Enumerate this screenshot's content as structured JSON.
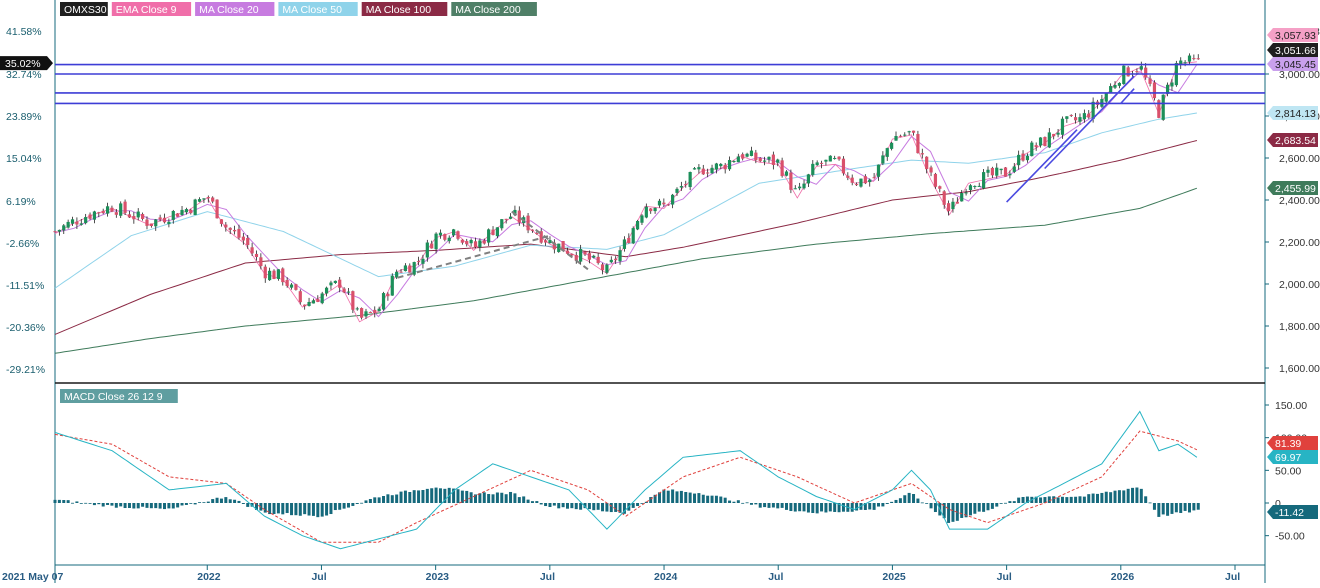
{
  "legend": [
    {
      "label": "OMXS30",
      "bg": "#1f1f1f",
      "fg": "#ffffff"
    },
    {
      "label": "EMA Close 9",
      "bg": "#f06ea9",
      "fg": "#ffffff"
    },
    {
      "label": "MA Close 20",
      "bg": "#c77be0",
      "fg": "#ffffff"
    },
    {
      "label": "MA Close 50",
      "bg": "#8fd3ea",
      "fg": "#ffffff"
    },
    {
      "label": "MA Close 100",
      "bg": "#8b2a45",
      "fg": "#ffffff"
    },
    {
      "label": "MA Close 200",
      "bg": "#4f7f67",
      "fg": "#ffffff"
    }
  ],
  "macd_label": "MACD Close 26 12 9",
  "colors": {
    "up": "#1c8f5a",
    "down": "#d9506b",
    "ema9": "#f06ea9",
    "ma20": "#c77be0",
    "ma50": "#8fd3ea",
    "ma100": "#8b2a45",
    "ma200": "#3f7b5b",
    "hline": "#3d3dd6",
    "trend": "#4a4ae0",
    "dashed": "#808080",
    "macd": "#27b4c4",
    "signal": "#e0413d",
    "hist": "#15697c",
    "axis": "#15697c",
    "percent_text": "#1a5e6e"
  },
  "left_axis": {
    "ticks": [
      "41.58%",
      "32.74%",
      "23.89%",
      "15.04%",
      "6.19%",
      "-2.66%",
      "-11.51%",
      "-20.36%",
      "-29.21%"
    ],
    "current": "35.02%"
  },
  "right_axis": {
    "ticks": [
      "3,000.00",
      "2,800.00",
      "2,600.00",
      "2,400.00",
      "2,200.00",
      "2,000.00",
      "1,800.00",
      "1,600.00"
    ],
    "obscured_top_label": "3,059.93"
  },
  "price_badges": [
    {
      "text": "3,057.93",
      "bg": "#f5a0c6",
      "fg": "#1f1f1f",
      "value": 3057.93
    },
    {
      "text": "3,051.66",
      "bg": "#1f1f1f",
      "fg": "#ffffff",
      "value": 3051.66
    },
    {
      "text": "3,045.45",
      "bg": "#c9a0ec",
      "fg": "#1f1f1f",
      "value": 3045.45
    },
    {
      "text": "2,814.13",
      "bg": "#bfe6f3",
      "fg": "#1f1f1f",
      "value": 2814.13
    },
    {
      "text": "2,683.54",
      "bg": "#8b2a45",
      "fg": "#ffffff",
      "value": 2683.54
    },
    {
      "text": "2,455.99",
      "bg": "#3f7b5b",
      "fg": "#ffffff",
      "value": 2455.99
    }
  ],
  "macd_axis": {
    "ticks": [
      "150.00",
      "100.00",
      "50.00",
      "0",
      "-50.00"
    ],
    "badges": [
      {
        "text": "81.39",
        "bg": "#e0413d",
        "fg": "#ffffff",
        "value": 81.39
      },
      {
        "text": "69.97",
        "bg": "#27b4c4",
        "fg": "#ffffff",
        "value": 69.97
      },
      {
        "text": "-11.42",
        "bg": "#15697c",
        "fg": "#ffffff",
        "value": -11.42
      }
    ]
  },
  "x_axis": {
    "labels": [
      "2021 May 07",
      "2022",
      "Jul",
      "2023",
      "Jul",
      "2024",
      "Jul",
      "2025",
      "Jul",
      "2026",
      "Jul"
    ]
  },
  "chart_data": [
    {
      "type": "candlestick",
      "title": "OMXS30",
      "y_range": [
        1560,
        3100
      ],
      "horizontal_lines": [
        3045,
        3000,
        2910,
        2860
      ],
      "x_ticks": [
        "2021 May 07",
        "2022",
        "Jul",
        "2023",
        "Jul",
        "2024",
        "Jul",
        "2025",
        "Jul",
        "2026",
        "Jul"
      ],
      "trend_lines": [
        {
          "from": [
            "2025-07",
            "2390"
          ],
          "to": [
            "2025-10",
            "2735"
          ]
        },
        {
          "from": [
            "2025-09",
            "2550"
          ],
          "to": [
            "2026-01",
            "2990"
          ]
        },
        {
          "from": [
            "2026-01",
            "2860"
          ],
          "to": [
            "2026-01",
            "2930"
          ]
        }
      ],
      "dashed_lines": [
        {
          "from": [
            "2022-11",
            "2030"
          ],
          "to": [
            "2023-07",
            "2230"
          ]
        },
        {
          "from": [
            "2023-05",
            "2345"
          ],
          "to": [
            "2023-09",
            "2070"
          ]
        }
      ],
      "series": [
        {
          "name": "OMXS30",
          "key": "close",
          "anchors": [
            [
              "2021-05",
              2250
            ],
            [
              "2021-06",
              2300
            ],
            [
              "2021-07",
              2340
            ],
            [
              "2021-08",
              2370
            ],
            [
              "2021-09",
              2330
            ],
            [
              "2021-10",
              2290
            ],
            [
              "2021-11",
              2330
            ],
            [
              "2021-12",
              2360
            ],
            [
              "2022-01",
              2420
            ],
            [
              "2022-02",
              2270
            ],
            [
              "2022-03",
              2200
            ],
            [
              "2022-04",
              2060
            ],
            [
              "2022-05",
              2030
            ],
            [
              "2022-06",
              1900
            ],
            [
              "2022-07",
              1950
            ],
            [
              "2022-08",
              2010
            ],
            [
              "2022-09",
              1830
            ],
            [
              "2022-10",
              1880
            ],
            [
              "2022-11",
              2070
            ],
            [
              "2022-12",
              2100
            ],
            [
              "2023-01",
              2230
            ],
            [
              "2023-02",
              2260
            ],
            [
              "2023-03",
              2170
            ],
            [
              "2023-04",
              2260
            ],
            [
              "2023-05",
              2330
            ],
            [
              "2023-06",
              2270
            ],
            [
              "2023-07",
              2200
            ],
            [
              "2023-08",
              2160
            ],
            [
              "2023-09",
              2120
            ],
            [
              "2023-10",
              2060
            ],
            [
              "2023-11",
              2200
            ],
            [
              "2023-12",
              2380
            ],
            [
              "2024-01",
              2370
            ],
            [
              "2024-02",
              2470
            ],
            [
              "2024-03",
              2550
            ],
            [
              "2024-04",
              2560
            ],
            [
              "2024-05",
              2620
            ],
            [
              "2024-06",
              2590
            ],
            [
              "2024-07",
              2580
            ],
            [
              "2024-08",
              2420
            ],
            [
              "2024-09",
              2570
            ],
            [
              "2024-10",
              2580
            ],
            [
              "2024-11",
              2490
            ],
            [
              "2024-12",
              2500
            ],
            [
              "2025-01",
              2700
            ],
            [
              "2025-02",
              2720
            ],
            [
              "2025-03",
              2510
            ],
            [
              "2025-04",
              2340
            ],
            [
              "2025-05",
              2490
            ],
            [
              "2025-06",
              2510
            ],
            [
              "2025-07",
              2530
            ],
            [
              "2025-08",
              2630
            ],
            [
              "2025-09",
              2680
            ],
            [
              "2025-10",
              2760
            ],
            [
              "2025-11",
              2790
            ],
            [
              "2025-12",
              2880
            ],
            [
              "2026-01",
              3000
            ],
            [
              "2026-02",
              3040
            ],
            [
              "2026-03",
              2820
            ],
            [
              "2026-04",
              3060
            ],
            [
              "2026-05",
              3052
            ]
          ]
        },
        {
          "name": "EMA Close 9",
          "key": "ema9",
          "anchors": [
            [
              "2026-05",
              3057.93
            ]
          ]
        },
        {
          "name": "MA Close 20",
          "key": "ma20",
          "anchors": [
            [
              "2026-05",
              3045.45
            ]
          ]
        },
        {
          "name": "MA Close 50",
          "key": "ma50",
          "anchors": [
            [
              "2021-05",
              1980
            ],
            [
              "2021-09",
              2230
            ],
            [
              "2022-01",
              2345
            ],
            [
              "2022-05",
              2250
            ],
            [
              "2022-10",
              2035
            ],
            [
              "2023-02",
              2085
            ],
            [
              "2023-06",
              2185
            ],
            [
              "2023-10",
              2165
            ],
            [
              "2024-01",
              2235
            ],
            [
              "2024-06",
              2480
            ],
            [
              "2024-11",
              2550
            ],
            [
              "2025-02",
              2590
            ],
            [
              "2025-05",
              2575
            ],
            [
              "2025-09",
              2625
            ],
            [
              "2025-12",
              2720
            ],
            [
              "2026-03",
              2785
            ],
            [
              "2026-05",
              2814.13
            ]
          ]
        },
        {
          "name": "MA Close 100",
          "key": "ma100",
          "anchors": [
            [
              "2021-05",
              1760
            ],
            [
              "2021-10",
              1950
            ],
            [
              "2022-03",
              2100
            ],
            [
              "2022-08",
              2140
            ],
            [
              "2023-01",
              2160
            ],
            [
              "2023-06",
              2190
            ],
            [
              "2023-11",
              2130
            ],
            [
              "2024-02",
              2175
            ],
            [
              "2024-08",
              2290
            ],
            [
              "2025-01",
              2400
            ],
            [
              "2025-05",
              2440
            ],
            [
              "2025-09",
              2510
            ],
            [
              "2026-01",
              2590
            ],
            [
              "2026-05",
              2683.54
            ]
          ]
        },
        {
          "name": "MA Close 200",
          "key": "ma200",
          "anchors": [
            [
              "2021-05",
              1670
            ],
            [
              "2021-10",
              1740
            ],
            [
              "2022-03",
              1800
            ],
            [
              "2022-09",
              1850
            ],
            [
              "2023-03",
              1920
            ],
            [
              "2023-09",
              2020
            ],
            [
              "2024-03",
              2120
            ],
            [
              "2024-09",
              2190
            ],
            [
              "2025-03",
              2240
            ],
            [
              "2025-09",
              2280
            ],
            [
              "2026-02",
              2360
            ],
            [
              "2026-05",
              2455.99
            ]
          ]
        }
      ]
    },
    {
      "type": "line+bar",
      "title": "MACD Close 26 12 9",
      "y_range": [
        -70,
        170
      ],
      "series": [
        {
          "name": "MACD",
          "key": "macd",
          "anchors": [
            [
              "2021-05",
              108
            ],
            [
              "2021-08",
              80
            ],
            [
              "2021-11",
              20
            ],
            [
              "2022-02",
              30
            ],
            [
              "2022-04",
              -20
            ],
            [
              "2022-06",
              -50
            ],
            [
              "2022-08",
              -70
            ],
            [
              "2022-10",
              -55
            ],
            [
              "2022-12",
              -40
            ],
            [
              "2023-02",
              20
            ],
            [
              "2023-04",
              60
            ],
            [
              "2023-06",
              40
            ],
            [
              "2023-08",
              20
            ],
            [
              "2023-10",
              -40
            ],
            [
              "2023-12",
              20
            ],
            [
              "2024-02",
              70
            ],
            [
              "2024-05",
              80
            ],
            [
              "2024-07",
              40
            ],
            [
              "2024-09",
              10
            ],
            [
              "2024-11",
              -10
            ],
            [
              "2025-01",
              20
            ],
            [
              "2025-02",
              50
            ],
            [
              "2025-03",
              20
            ],
            [
              "2025-04",
              -40
            ],
            [
              "2025-06",
              -40
            ],
            [
              "2025-08",
              0
            ],
            [
              "2025-10",
              30
            ],
            [
              "2025-12",
              60
            ],
            [
              "2026-02",
              140
            ],
            [
              "2026-03",
              80
            ],
            [
              "2026-04",
              90
            ],
            [
              "2026-05",
              69.97
            ]
          ]
        },
        {
          "name": "Signal",
          "key": "signal",
          "anchors": [
            [
              "2021-05",
              105
            ],
            [
              "2021-08",
              90
            ],
            [
              "2021-11",
              40
            ],
            [
              "2022-02",
              30
            ],
            [
              "2022-04",
              -10
            ],
            [
              "2022-07",
              -60
            ],
            [
              "2022-10",
              -60
            ],
            [
              "2022-12",
              -30
            ],
            [
              "2023-03",
              10
            ],
            [
              "2023-06",
              50
            ],
            [
              "2023-09",
              20
            ],
            [
              "2023-11",
              -20
            ],
            [
              "2024-02",
              40
            ],
            [
              "2024-05",
              70
            ],
            [
              "2024-08",
              40
            ],
            [
              "2024-11",
              0
            ],
            [
              "2025-02",
              30
            ],
            [
              "2025-04",
              -10
            ],
            [
              "2025-06",
              -30
            ],
            [
              "2025-09",
              0
            ],
            [
              "2025-12",
              40
            ],
            [
              "2026-02",
              110
            ],
            [
              "2026-04",
              95
            ],
            [
              "2026-05",
              81.39
            ]
          ]
        },
        {
          "name": "Histogram",
          "key": "hist",
          "anchors": [
            [
              "2021-05",
              5
            ],
            [
              "2021-08",
              -5
            ],
            [
              "2021-11",
              -10
            ],
            [
              "2022-02",
              10
            ],
            [
              "2022-04",
              -15
            ],
            [
              "2022-07",
              -20
            ],
            [
              "2022-10",
              10
            ],
            [
              "2022-12",
              20
            ],
            [
              "2023-01",
              25
            ],
            [
              "2023-03",
              15
            ],
            [
              "2023-05",
              15
            ],
            [
              "2023-07",
              -5
            ],
            [
              "2023-09",
              -10
            ],
            [
              "2023-11",
              -15
            ],
            [
              "2024-01",
              20
            ],
            [
              "2024-03",
              15
            ],
            [
              "2024-06",
              -5
            ],
            [
              "2024-09",
              -15
            ],
            [
              "2024-12",
              -10
            ],
            [
              "2025-02",
              15
            ],
            [
              "2025-04",
              -30
            ],
            [
              "2025-06",
              -10
            ],
            [
              "2025-08",
              10
            ],
            [
              "2025-11",
              10
            ],
            [
              "2026-01",
              20
            ],
            [
              "2026-02",
              25
            ],
            [
              "2026-03",
              -20
            ],
            [
              "2026-05",
              -11.42
            ]
          ]
        }
      ]
    }
  ]
}
